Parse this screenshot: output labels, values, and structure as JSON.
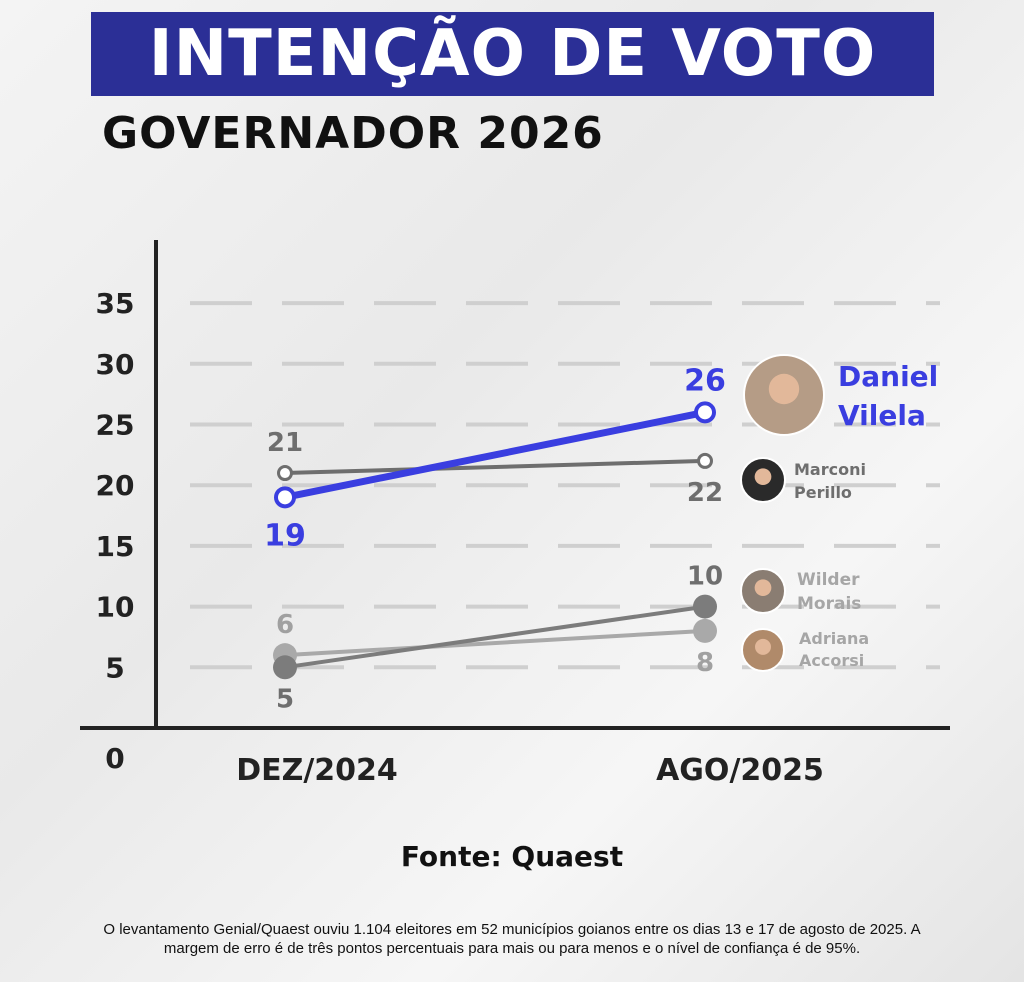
{
  "header": {
    "title": "INTENÇÃO DE VOTO",
    "subtitle": "GOVERNADOR 2026"
  },
  "chart_data": {
    "type": "line",
    "categories": [
      "DEZ/2024",
      "AGO/2025"
    ],
    "ylim": [
      0,
      38
    ],
    "yticks": [
      "0",
      "5",
      "10",
      "15",
      "20",
      "25",
      "30",
      "35"
    ],
    "grid": true,
    "series": [
      {
        "name": "Daniel Vilela",
        "values": [
          19,
          26
        ],
        "color": "#3a3ee0",
        "marker": "hollow",
        "labels": [
          "19",
          "26"
        ],
        "label_pos": [
          "below",
          "above"
        ]
      },
      {
        "name": "Marconi Perillo",
        "values": [
          21,
          22
        ],
        "color": "#6e6e6e",
        "marker": "hollow-small",
        "labels": [
          "21",
          "22"
        ],
        "label_pos": [
          "above",
          "below"
        ]
      },
      {
        "name": "Wilder Morais",
        "values": [
          5,
          10
        ],
        "color": "#7c7c7c",
        "marker": "filled",
        "labels": [
          "5",
          "10"
        ],
        "label_pos": [
          "below",
          "above"
        ]
      },
      {
        "name": "Adriana Accorsi",
        "values": [
          6,
          8
        ],
        "color": "#a9a9a9",
        "marker": "filled",
        "labels": [
          "6",
          "8"
        ],
        "label_pos": [
          "above",
          "below"
        ]
      }
    ]
  },
  "legend": [
    {
      "first": "Daniel",
      "last": "Vilela",
      "color": "#3a3ee0",
      "photo": "avatar-photo"
    },
    {
      "first": "Marconi",
      "last": "Perillo",
      "color": "#6e6e6e",
      "photo": "avatar-photo"
    },
    {
      "first": "Wilder",
      "last": "Morais",
      "color": "#a6a6a6",
      "photo": "avatar-photo"
    },
    {
      "first": "Adriana",
      "last": "Accorsi",
      "color": "#a6a6a6",
      "photo": "avatar-photo"
    }
  ],
  "footer": {
    "source": "Fonte: Quaest",
    "note": "O levantamento Genial/Quaest ouviu 1.104 eleitores em 52 municípios goianos entre os dias 13 e 17 de agosto de 2025. A margem de erro é de três pontos percentuais para mais ou para menos e o nível de confiança é de 95%."
  }
}
